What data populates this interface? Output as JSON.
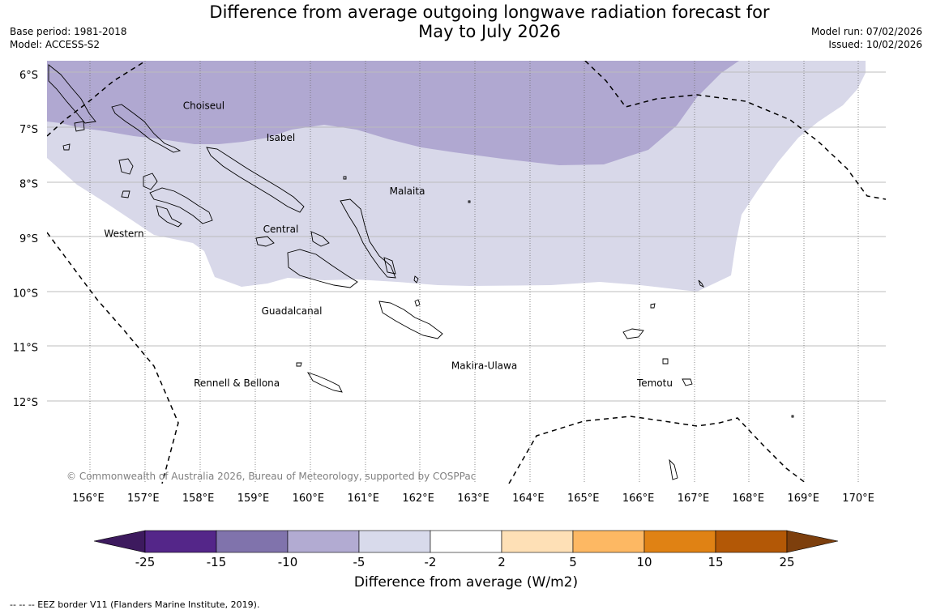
{
  "title": {
    "line1": "Difference from average outgoing longwave radiation forecast for",
    "line2": "May to July 2026"
  },
  "meta": {
    "base_period": "Base period: 1981-2018",
    "model": "Model: ACCESS-S2",
    "model_run": "Model run: 07/02/2026",
    "issued": "Issued: 10/02/2026"
  },
  "map": {
    "lon_range": [
      155.25,
      170.5
    ],
    "lat_range": [
      -13.5,
      -5.75
    ],
    "latitude_labels": [
      {
        "lat": -6,
        "label": "6°S"
      },
      {
        "lat": -7,
        "label": "7°S"
      },
      {
        "lat": -8,
        "label": "8°S"
      },
      {
        "lat": -9,
        "label": "9°S"
      },
      {
        "lat": -10,
        "label": "10°S"
      },
      {
        "lat": -11,
        "label": "11°S"
      },
      {
        "lat": -12,
        "label": "12°S"
      }
    ],
    "longitude_labels": [
      {
        "lon": 156,
        "label": "156°E"
      },
      {
        "lon": 157,
        "label": "157°E"
      },
      {
        "lon": 158,
        "label": "158°E"
      },
      {
        "lon": 159,
        "label": "159°E"
      },
      {
        "lon": 160,
        "label": "160°E"
      },
      {
        "lon": 161,
        "label": "161°E"
      },
      {
        "lon": 162,
        "label": "162°E"
      },
      {
        "lon": 163,
        "label": "163°E"
      },
      {
        "lon": 164,
        "label": "164°E"
      },
      {
        "lon": 165,
        "label": "165°E"
      },
      {
        "lon": 166,
        "label": "166°E"
      },
      {
        "lon": 167,
        "label": "167°E"
      },
      {
        "lon": 168,
        "label": "168°E"
      },
      {
        "lon": 169,
        "label": "169°E"
      },
      {
        "lon": 170,
        "label": "170°E"
      }
    ],
    "regions": [
      {
        "name": "Choiseul",
        "lon": 158.1,
        "lat": -6.63
      },
      {
        "name": "Isabel",
        "lon": 159.5,
        "lat": -7.22
      },
      {
        "name": "Malaita",
        "lon": 161.8,
        "lat": -8.2
      },
      {
        "name": "Western",
        "lon": 156.65,
        "lat": -8.98
      },
      {
        "name": "Central",
        "lon": 159.5,
        "lat": -8.9
      },
      {
        "name": "Guadalcanal",
        "lon": 159.7,
        "lat": -10.4
      },
      {
        "name": "Makira-Ulawa",
        "lon": 163.2,
        "lat": -11.4
      },
      {
        "name": "Rennell & Bellona",
        "lon": 158.7,
        "lat": -11.72
      },
      {
        "name": "Temotu",
        "lon": 166.3,
        "lat": -11.72
      }
    ],
    "anomaly_zones": [
      {
        "range": "-10 to -5",
        "color": "#b0a8d1"
      },
      {
        "range": "-5 to -2",
        "color": "#d8d8e9"
      }
    ],
    "copyright": "© Commonwealth of Australia 2026, Bureau of Meteorology, supported by COSPPac"
  },
  "colorbar": {
    "title": "Difference from average (W/m2)",
    "ticks": [
      "-25",
      "-15",
      "-10",
      "-5",
      "-2",
      "2",
      "5",
      "10",
      "15",
      "25"
    ],
    "under_color": "#3d1a5e",
    "over_color": "#7d3f0d",
    "colors": [
      "#542689",
      "#8073ac",
      "#b2abd2",
      "#d8daeb",
      "#ffffff",
      "#fee0b6",
      "#fdb863",
      "#e08214",
      "#b35806"
    ]
  },
  "footnote": "--  --  -- EEZ border V11 (Flanders Marine Institute, 2019)."
}
